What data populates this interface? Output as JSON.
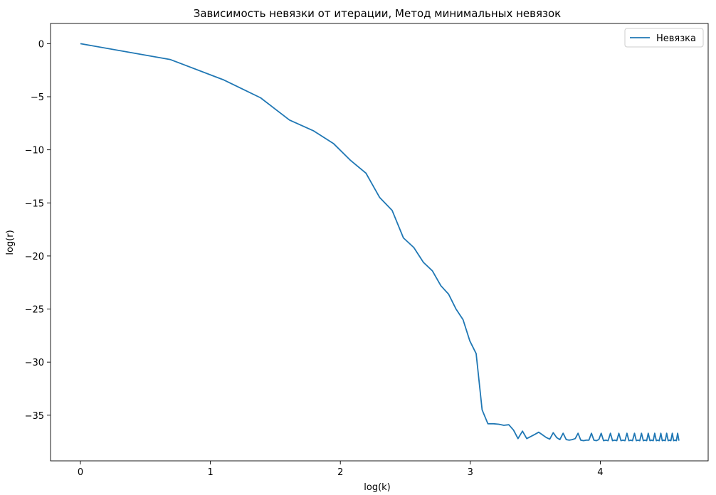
{
  "chart_data": {
    "type": "line",
    "title": "Зависимость невязки от итерации, Метод минимальных невязок",
    "xlabel": "log(k)",
    "ylabel": "log(r)",
    "xlim": [
      -0.23,
      4.83
    ],
    "ylim": [
      -39.3,
      1.9
    ],
    "xticks": [
      0,
      1,
      2,
      3,
      4
    ],
    "yticks": [
      0,
      -5,
      -10,
      -15,
      -20,
      -25,
      -30,
      -35
    ],
    "xtick_labels": [
      "0",
      "1",
      "2",
      "3",
      "4"
    ],
    "ytick_labels": [
      "0",
      "−5",
      "−10",
      "−15",
      "−20",
      "−25",
      "−30",
      "−35"
    ],
    "grid": false,
    "legend": {
      "position": "top-right",
      "entries": [
        "Невязка"
      ]
    },
    "series": [
      {
        "name": "Невязка",
        "color": "#1f77b4",
        "x": [
          0,
          0.693,
          1.099,
          1.386,
          1.609,
          1.792,
          1.946,
          2.079,
          2.197,
          2.303,
          2.398,
          2.485,
          2.565,
          2.639,
          2.708,
          2.773,
          2.833,
          2.89,
          2.944,
          2.996,
          3.045,
          3.091,
          3.135,
          3.178,
          3.219,
          3.258,
          3.296,
          3.332,
          3.367,
          3.401,
          3.434,
          3.466,
          3.497,
          3.526,
          3.555,
          3.584,
          3.611,
          3.638,
          3.664,
          3.689,
          3.714,
          3.738,
          3.761,
          3.784,
          3.807,
          3.829,
          3.85,
          3.871,
          3.892,
          3.912,
          3.932,
          3.951,
          3.97,
          3.989,
          4.007,
          4.025,
          4.043,
          4.06,
          4.078,
          4.094,
          4.111,
          4.127,
          4.143,
          4.159,
          4.174,
          4.19,
          4.205,
          4.22,
          4.234,
          4.248,
          4.263,
          4.277,
          4.29,
          4.304,
          4.317,
          4.331,
          4.344,
          4.357,
          4.369,
          4.382,
          4.394,
          4.407,
          4.419,
          4.431,
          4.443,
          4.454,
          4.466,
          4.477,
          4.489,
          4.5,
          4.511,
          4.522,
          4.533,
          4.543,
          4.554,
          4.564,
          4.575,
          4.585,
          4.595,
          4.605
        ],
        "y": [
          0.0,
          -1.5,
          -3.4,
          -5.1,
          -7.2,
          -8.2,
          -9.4,
          -11.0,
          -12.2,
          -14.5,
          -15.7,
          -18.3,
          -19.2,
          -20.6,
          -21.4,
          -22.8,
          -23.6,
          -25.0,
          -26.0,
          -28.0,
          -29.2,
          -34.5,
          -35.8,
          -35.8,
          -35.85,
          -35.95,
          -35.9,
          -36.4,
          -37.2,
          -36.5,
          -37.2,
          -37.0,
          -36.8,
          -36.6,
          -36.85,
          -37.1,
          -37.25,
          -36.65,
          -37.1,
          -37.3,
          -36.7,
          -37.3,
          -37.35,
          -37.3,
          -37.2,
          -36.7,
          -37.35,
          -37.4,
          -37.35,
          -37.35,
          -36.7,
          -37.35,
          -37.4,
          -37.3,
          -36.7,
          -37.4,
          -37.35,
          -37.4,
          -36.7,
          -37.4,
          -37.35,
          -37.4,
          -36.7,
          -37.4,
          -37.35,
          -37.4,
          -36.7,
          -37.4,
          -37.35,
          -37.4,
          -36.7,
          -37.4,
          -37.35,
          -37.4,
          -36.7,
          -37.4,
          -37.35,
          -37.4,
          -36.7,
          -37.4,
          -37.35,
          -37.4,
          -36.7,
          -37.4,
          -37.35,
          -37.4,
          -36.7,
          -37.4,
          -37.35,
          -37.4,
          -36.7,
          -37.4,
          -37.35,
          -37.4,
          -36.7,
          -37.4,
          -37.35,
          -37.4,
          -36.7,
          -37.4
        ]
      }
    ]
  }
}
